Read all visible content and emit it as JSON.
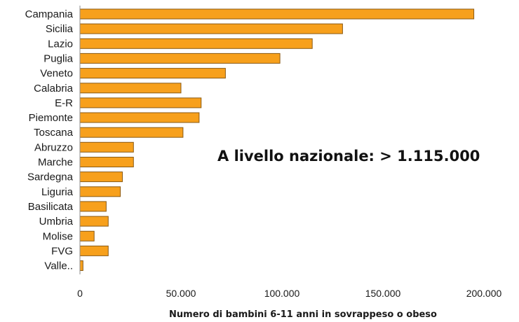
{
  "chart_data": {
    "type": "bar",
    "orientation": "horizontal",
    "categories": [
      "Campania",
      "Sicilia",
      "Lazio",
      "Puglia",
      "Veneto",
      "Calabria",
      "E-R",
      "Piemonte",
      "Toscana",
      "Abruzzo",
      "Marche",
      "Sardegna",
      "Liguria",
      "Basilicata",
      "Umbria",
      "Molise",
      "FVG",
      "Valle.."
    ],
    "values": [
      195000,
      130000,
      115000,
      99000,
      72000,
      50000,
      60000,
      59000,
      51000,
      26500,
      26500,
      21000,
      20000,
      13000,
      14000,
      7000,
      14000,
      1500
    ],
    "xlabel": "Numero di bambini 6-11 anni in sovrappeso o obeso",
    "xlim": [
      0,
      200000
    ],
    "xticks": [
      0,
      50000,
      100000,
      150000,
      200000
    ],
    "xtick_labels": [
      "0",
      "50.000",
      "100.000",
      "150.000",
      "200.000"
    ],
    "annotation": "A livello nazionale: > 1.115.000",
    "bar_color": "#f7a01c",
    "bar_edge_color": "#8a5a14",
    "grid": false
  }
}
